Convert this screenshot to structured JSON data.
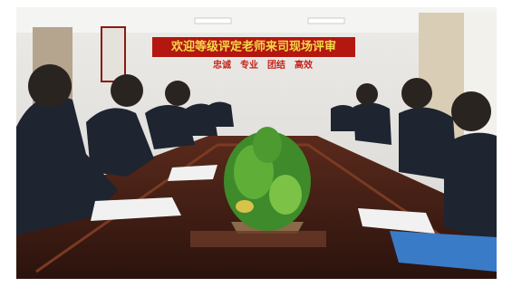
{
  "banner": {
    "title": "欢迎等级评定老师来司现场评审",
    "slogan": "忠诚　专业　团结　高效"
  }
}
